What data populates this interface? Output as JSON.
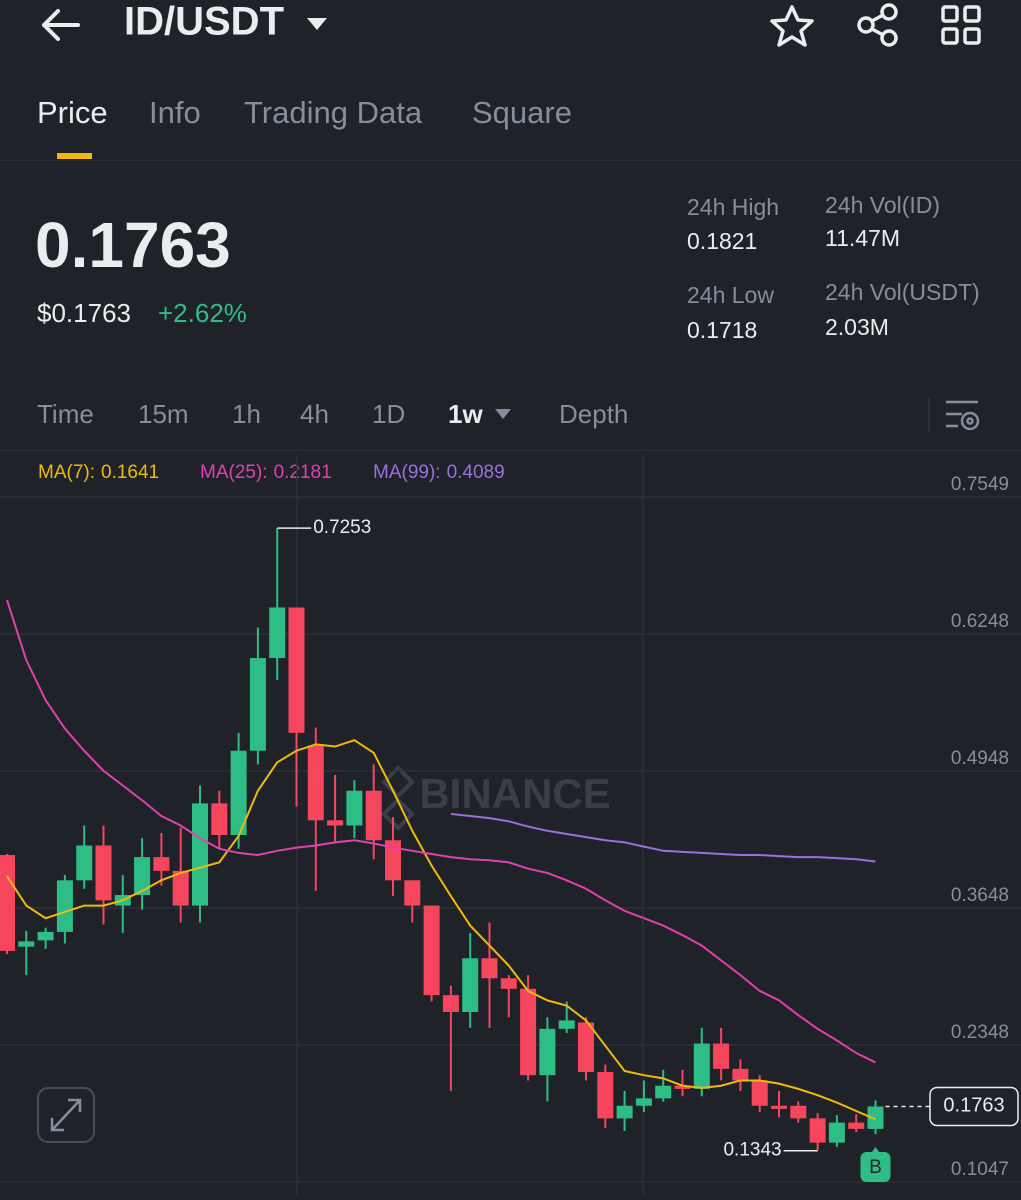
{
  "header": {
    "title": "ID/USDT"
  },
  "tabs": [
    "Price",
    "Info",
    "Trading Data",
    "Square"
  ],
  "ticker": {
    "price": "0.1763",
    "usd_price": "$0.1763",
    "change": "+2.62%",
    "stats": [
      {
        "label": "24h High",
        "value": "0.1821"
      },
      {
        "label": "24h Vol(ID)",
        "value": "11.47M"
      },
      {
        "label": "24h Low",
        "value": "0.1718"
      },
      {
        "label": "24h Vol(USDT)",
        "value": "2.03M"
      }
    ]
  },
  "intervals": [
    "Time",
    "15m",
    "1h",
    "4h",
    "1D",
    "1w",
    "Depth"
  ],
  "chart_data": {
    "type": "candlestick",
    "watermark": "BINANCE",
    "buy_marker": "B",
    "up_color": "#2ebd85",
    "down_color": "#f6465d",
    "open": [
      0.415,
      0.328,
      0.334,
      0.342,
      0.391,
      0.424,
      0.367,
      0.377,
      0.413,
      0.4,
      0.367,
      0.464,
      0.434,
      0.514,
      0.602,
      0.65,
      0.519,
      0.448,
      0.443,
      0.476,
      0.429,
      0.391,
      0.367,
      0.282,
      0.266,
      0.317,
      0.298,
      0.288,
      0.206,
      0.25,
      0.256,
      0.209,
      0.165,
      0.177,
      0.184,
      0.196,
      0.193,
      0.236,
      0.212,
      0.201,
      0.177,
      0.177,
      0.165,
      0.142,
      0.161,
      0.155
    ],
    "high": [
      0.416,
      0.343,
      0.346,
      0.396,
      0.443,
      0.443,
      0.396,
      0.431,
      0.436,
      0.441,
      0.481,
      0.476,
      0.531,
      0.631,
      0.7253,
      0.65,
      0.536,
      0.491,
      0.486,
      0.501,
      0.451,
      0.391,
      0.367,
      0.291,
      0.341,
      0.351,
      0.301,
      0.301,
      0.261,
      0.276,
      0.261,
      0.216,
      0.191,
      0.201,
      0.211,
      0.211,
      0.251,
      0.251,
      0.221,
      0.206,
      0.191,
      0.181,
      0.17,
      0.168,
      0.169,
      0.182
    ],
    "low": [
      0.321,
      0.301,
      0.326,
      0.331,
      0.383,
      0.349,
      0.341,
      0.363,
      0.386,
      0.351,
      0.351,
      0.421,
      0.421,
      0.501,
      0.581,
      0.461,
      0.381,
      0.426,
      0.431,
      0.411,
      0.376,
      0.351,
      0.276,
      0.191,
      0.251,
      0.251,
      0.261,
      0.201,
      0.181,
      0.246,
      0.201,
      0.156,
      0.153,
      0.171,
      0.181,
      0.186,
      0.186,
      0.201,
      0.191,
      0.171,
      0.166,
      0.161,
      0.1343,
      0.138,
      0.152,
      0.15
    ],
    "close": [
      0.324,
      0.333,
      0.342,
      0.391,
      0.424,
      0.372,
      0.377,
      0.413,
      0.4,
      0.367,
      0.464,
      0.434,
      0.514,
      0.602,
      0.65,
      0.531,
      0.448,
      0.443,
      0.476,
      0.429,
      0.391,
      0.367,
      0.282,
      0.266,
      0.317,
      0.298,
      0.288,
      0.206,
      0.25,
      0.258,
      0.209,
      0.165,
      0.177,
      0.184,
      0.196,
      0.193,
      0.236,
      0.212,
      0.201,
      0.177,
      0.174,
      0.165,
      0.142,
      0.161,
      0.155,
      0.1763
    ],
    "series": [
      {
        "name": "MA(7):",
        "color": "#f0b90b",
        "values": [
          0.395,
          0.367,
          0.355,
          0.361,
          0.367,
          0.367,
          0.372,
          0.381,
          0.391,
          0.398,
          0.403,
          0.408,
          0.433,
          0.476,
          0.503,
          0.514,
          0.52,
          0.518,
          0.524,
          0.512,
          0.476,
          0.438,
          0.405,
          0.376,
          0.348,
          0.329,
          0.31,
          0.286,
          0.277,
          0.272,
          0.258,
          0.234,
          0.21,
          0.206,
          0.203,
          0.196,
          0.194,
          0.196,
          0.201,
          0.201,
          0.198,
          0.193,
          0.187,
          0.18,
          0.172,
          0.1641
        ]
      },
      {
        "name": "MA(25):",
        "color": "#e040b0",
        "values": [
          0.657,
          0.6,
          0.562,
          0.535,
          0.514,
          0.495,
          0.481,
          0.467,
          0.452,
          0.443,
          0.431,
          0.421,
          0.417,
          0.415,
          0.419,
          0.422,
          0.424,
          0.427,
          0.429,
          0.426,
          0.422,
          0.419,
          0.416,
          0.413,
          0.411,
          0.41,
          0.408,
          0.402,
          0.398,
          0.391,
          0.383,
          0.372,
          0.362,
          0.355,
          0.348,
          0.339,
          0.329,
          0.315,
          0.301,
          0.286,
          0.277,
          0.263,
          0.25,
          0.239,
          0.227,
          0.2181
        ]
      },
      {
        "name": "MA(99):",
        "color": "#9b6fdc",
        "values": [
          null,
          null,
          null,
          null,
          null,
          null,
          null,
          null,
          null,
          null,
          null,
          null,
          null,
          null,
          null,
          null,
          null,
          null,
          null,
          null,
          null,
          null,
          null,
          0.454,
          0.452,
          0.45,
          0.447,
          0.442,
          0.438,
          0.435,
          0.432,
          0.429,
          0.427,
          0.423,
          0.419,
          0.418,
          0.417,
          0.416,
          0.415,
          0.415,
          0.414,
          0.413,
          0.413,
          0.412,
          0.411,
          0.4089
        ]
      }
    ],
    "ylim": [
      0.097,
      0.79
    ],
    "yticks": [
      0.7549,
      0.6248,
      0.4948,
      0.3648,
      0.2348,
      0.1047
    ],
    "grid": true
  }
}
